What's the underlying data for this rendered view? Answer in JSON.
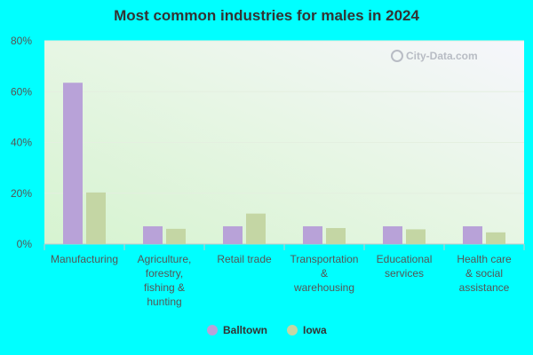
{
  "chart_data": {
    "type": "bar",
    "title": "Most common industries for males in 2024",
    "categories": [
      [
        "Manufacturing"
      ],
      [
        "Agriculture,",
        "forestry,",
        "fishing &",
        "hunting"
      ],
      [
        "Retail trade"
      ],
      [
        "Transportation",
        "&",
        "warehousing"
      ],
      [
        "Educational",
        "services"
      ],
      [
        "Health care",
        "& social",
        "assistance"
      ]
    ],
    "series": [
      {
        "name": "Balltown",
        "color": "#b8a2d8",
        "values": [
          63.5,
          7.0,
          7.0,
          7.0,
          7.0,
          7.0
        ]
      },
      {
        "name": "Iowa",
        "color": "#c4d6a4",
        "values": [
          20.3,
          6.0,
          12.0,
          6.3,
          5.8,
          4.6
        ]
      }
    ],
    "ylim": [
      0,
      80
    ],
    "yticks": [
      0,
      20,
      40,
      60,
      80
    ],
    "ytick_labels": [
      "0%",
      "20%",
      "40%",
      "60%",
      "80%"
    ],
    "grid": true,
    "legend_position": "bottom-center",
    "watermark": "City-Data.com"
  }
}
